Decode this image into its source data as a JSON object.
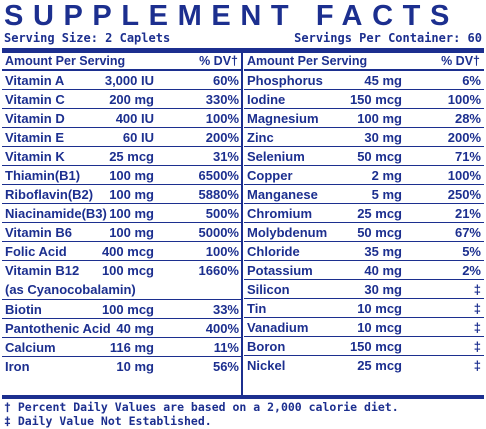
{
  "title": "SUPPLEMENT FACTS",
  "serving_size": "Serving Size: 2 Caplets",
  "servings_per_container": "Servings Per Container: 60",
  "header": {
    "amount_label": "Amount Per Serving",
    "dv_label": "% DV†"
  },
  "left_column": [
    {
      "name": "Vitamin A",
      "amount": "3,000 IU",
      "dv": "60%"
    },
    {
      "name": "Vitamin C",
      "amount": "200 mg",
      "dv": "330%"
    },
    {
      "name": "Vitamin D",
      "amount": "400 IU",
      "dv": "100%"
    },
    {
      "name": "Vitamin E",
      "amount": "60 IU",
      "dv": "200%"
    },
    {
      "name": "Vitamin K",
      "amount": "25 mcg",
      "dv": "31%"
    },
    {
      "name": "Thiamin(B1)",
      "amount": "100 mg",
      "dv": "6500%"
    },
    {
      "name": "Riboflavin(B2)",
      "amount": "100 mg",
      "dv": "5880%"
    },
    {
      "name": "Niacinamide(B3)",
      "amount": "100 mg",
      "dv": "500%"
    },
    {
      "name": "Vitamin B6",
      "amount": "100 mg",
      "dv": "5000%"
    },
    {
      "name": "Folic Acid",
      "amount": "400 mcg",
      "dv": "100%"
    },
    {
      "name": "Vitamin B12",
      "name_sub": "(as Cyanocobalamin)",
      "amount": "100 mcg",
      "dv": "1660%"
    },
    {
      "name": "Biotin",
      "amount": "100 mcg",
      "dv": "33%"
    },
    {
      "name": "Pantothenic Acid",
      "amount": "40 mg",
      "dv": "400%"
    },
    {
      "name": "Calcium",
      "amount": "116 mg",
      "dv": "11%"
    },
    {
      "name": "Iron",
      "amount": "10 mg",
      "dv": "56%"
    }
  ],
  "right_column": [
    {
      "name": "Phosphorus",
      "amount": "45 mg",
      "dv": "6%"
    },
    {
      "name": "Iodine",
      "amount": "150 mcg",
      "dv": "100%"
    },
    {
      "name": "Magnesium",
      "amount": "100 mg",
      "dv": "28%"
    },
    {
      "name": "Zinc",
      "amount": "30 mg",
      "dv": "200%"
    },
    {
      "name": "Selenium",
      "amount": "50 mcg",
      "dv": "71%"
    },
    {
      "name": "Copper",
      "amount": "2 mg",
      "dv": "100%"
    },
    {
      "name": "Manganese",
      "amount": "5 mg",
      "dv": "250%"
    },
    {
      "name": "Chromium",
      "amount": "25 mcg",
      "dv": "21%"
    },
    {
      "name": "Molybdenum",
      "amount": "50 mcg",
      "dv": "67%"
    },
    {
      "name": "Chloride",
      "amount": "35 mg",
      "dv": "5%"
    },
    {
      "name": "Potassium",
      "amount": "40 mg",
      "dv": "2%"
    },
    {
      "name": "Silicon",
      "amount": "30 mg",
      "dv": "‡"
    },
    {
      "name": "Tin",
      "amount": "10 mcg",
      "dv": "‡"
    },
    {
      "name": "Vanadium",
      "amount": "10 mcg",
      "dv": "‡"
    },
    {
      "name": "Boron",
      "amount": "150 mcg",
      "dv": "‡"
    },
    {
      "name": "Nickel",
      "amount": "25 mcg",
      "dv": "‡"
    }
  ],
  "footnotes": [
    "† Percent Daily Values are based on a 2,000 calorie diet.",
    "‡ Daily Value Not Established."
  ],
  "colors": {
    "text": "#1c2f8f",
    "background": "#ffffff"
  }
}
